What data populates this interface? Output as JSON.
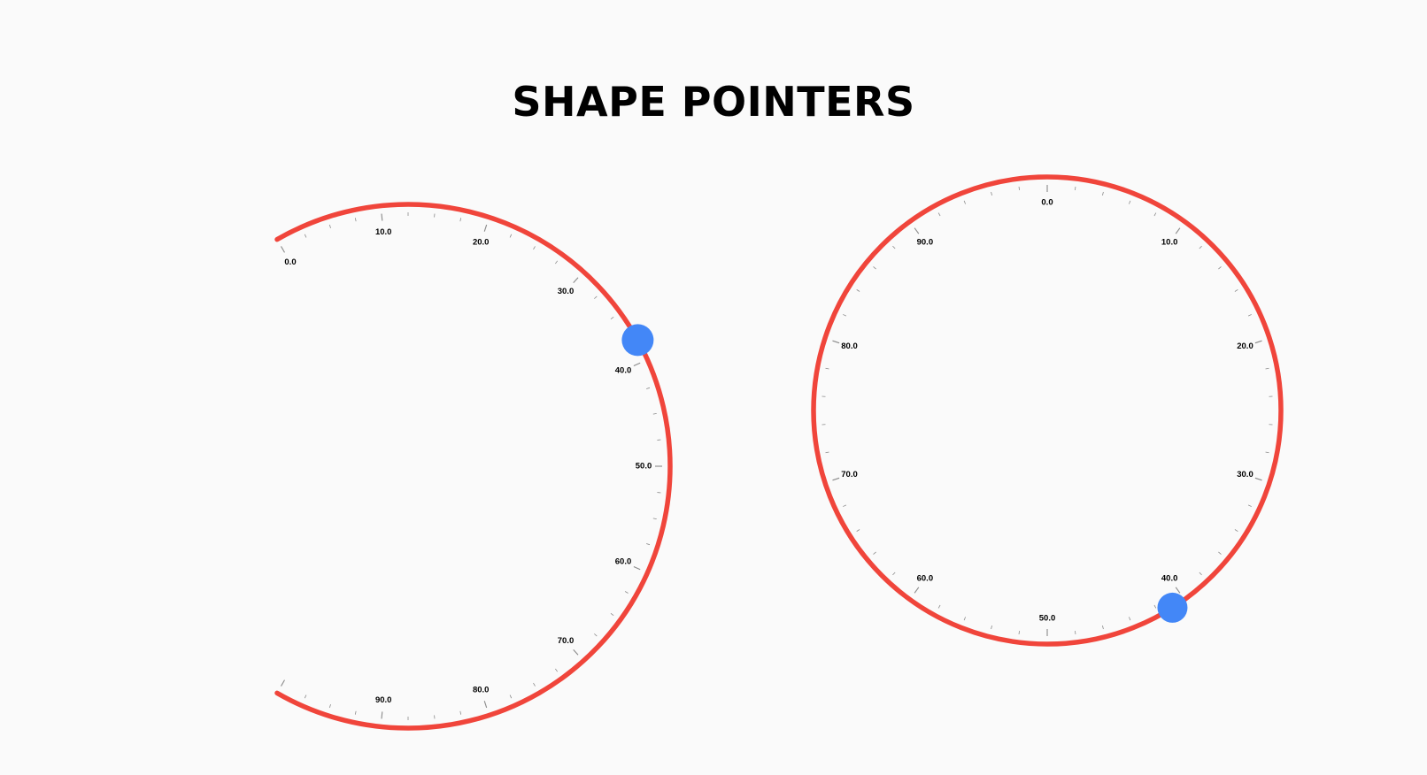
{
  "title": "SHAPE POINTERS",
  "colors": {
    "arc": "#f0453b",
    "pointer": "#4387f7",
    "tick": "#8a8a8a",
    "label": "#000000",
    "background": "#fafafa"
  },
  "chart_data": [
    {
      "type": "radial-gauge",
      "min": 0,
      "max": 100,
      "start_angle_deg": 240,
      "sweep_deg": 240,
      "major_ticks": [
        0,
        10,
        20,
        30,
        40,
        50,
        60,
        70,
        80,
        90
      ],
      "tick_labels": [
        "0.0",
        "10.0",
        "20.0",
        "30.0",
        "40.0",
        "50.0",
        "60.0",
        "70.0",
        "80.0",
        "90.0"
      ],
      "minor_ticks_per_interval": 3,
      "pointer": {
        "shape": "circle",
        "value": 38
      }
    },
    {
      "type": "radial-gauge",
      "min": 0,
      "max": 100,
      "start_angle_deg": 270,
      "sweep_deg": 360,
      "major_ticks": [
        0,
        10,
        20,
        30,
        40,
        50,
        60,
        70,
        80,
        90
      ],
      "tick_labels": [
        "0.0",
        "10.0",
        "20.0",
        "30.0",
        "40.0",
        "50.0",
        "60.0",
        "70.0",
        "80.0",
        "90.0"
      ],
      "minor_ticks_per_interval": 4,
      "pointer": {
        "shape": "circle",
        "value": 41
      }
    }
  ]
}
